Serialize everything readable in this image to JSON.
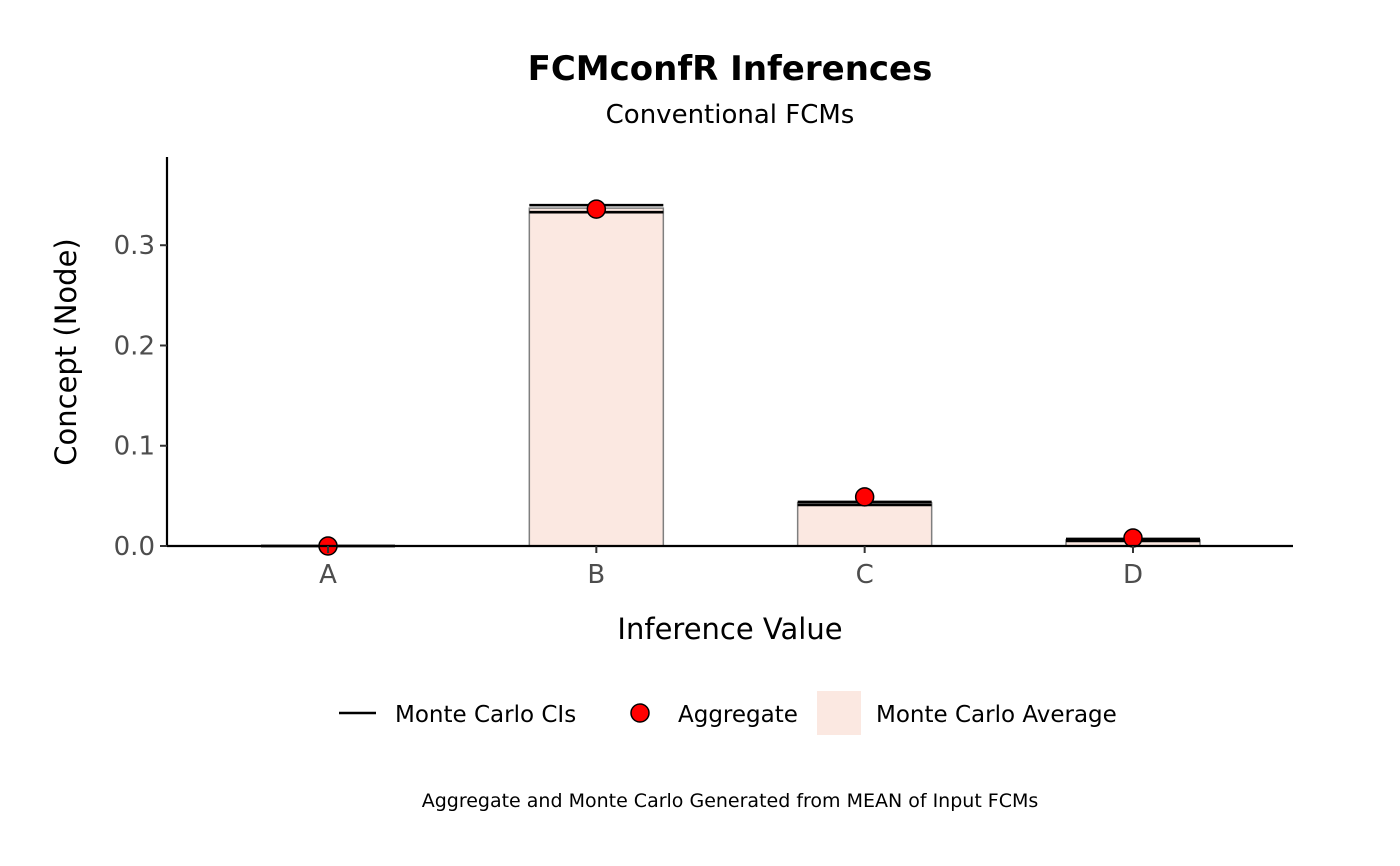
{
  "chart_data": {
    "type": "bar",
    "title": "FCMconfR Inferences",
    "subtitle": "Conventional FCMs",
    "xlabel": "Inference Value",
    "ylabel": "Concept (Node)",
    "categories": [
      "A",
      "B",
      "C",
      "D"
    ],
    "ylim": [
      0,
      0.388
    ],
    "yticks": [
      0.0,
      0.1,
      0.2,
      0.3
    ],
    "ytick_labels": [
      "0.0",
      "0.1",
      "0.2",
      "0.3"
    ],
    "series": [
      {
        "name": "Monte Carlo Average",
        "kind": "bar",
        "values": [
          0.0,
          0.337,
          0.043,
          0.006
        ],
        "color": "#fbe8e1"
      },
      {
        "name": "Aggregate",
        "kind": "point",
        "values": [
          0.0,
          0.336,
          0.049,
          0.008
        ],
        "color": "#ff0000"
      },
      {
        "name": "Monte Carlo CIs",
        "kind": "errorbar",
        "lower": [
          0.0,
          0.333,
          0.041,
          0.005
        ],
        "upper": [
          0.0,
          0.34,
          0.044,
          0.007
        ],
        "color": "#000000"
      }
    ],
    "legend": {
      "position": "bottom",
      "items": [
        "Monte Carlo CIs",
        "Aggregate",
        "Monte Carlo Average"
      ]
    },
    "caption": "Aggregate and Monte Carlo Generated from MEAN of Input FCMs",
    "grid": false
  }
}
